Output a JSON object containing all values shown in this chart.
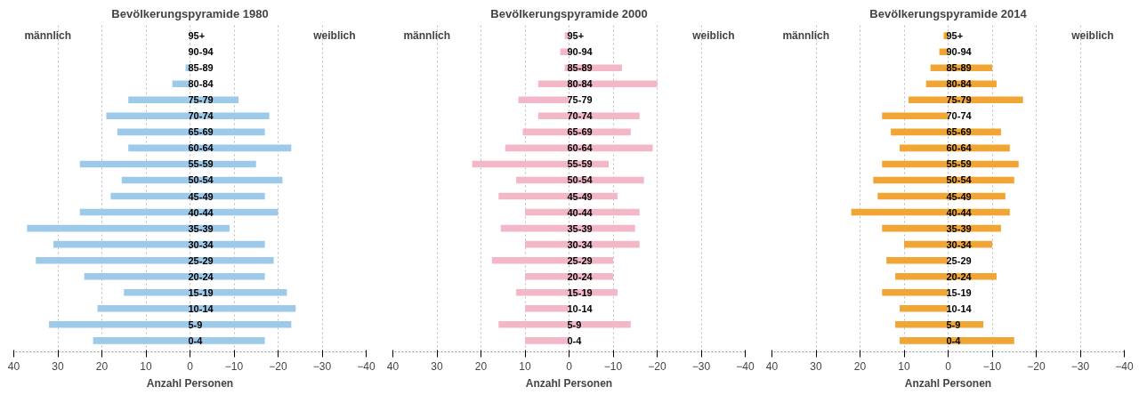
{
  "chart_data": [
    {
      "type": "bar",
      "orientation": "horizontal",
      "stacked": true,
      "title": "Bevölkerungspyramide 1980",
      "xlabel": "Anzahl Personen",
      "annotations": [
        "männlich",
        "weiblich"
      ],
      "categories": [
        "95+",
        "90-94",
        "85-89",
        "80-84",
        "75-79",
        "70-74",
        "65-69",
        "60-64",
        "55-59",
        "50-54",
        "45-49",
        "40-44",
        "35-39",
        "30-34",
        "25-29",
        "20-24",
        "15-19",
        "10-14",
        "5-9",
        "0-4"
      ],
      "series": [
        {
          "color": "#9ecae9",
          "values": [
            null,
            null,
            1,
            4,
            14,
            19,
            16.5,
            14,
            25,
            15.5,
            18,
            25,
            37,
            31,
            35,
            24,
            15,
            21,
            32,
            22
          ]
        },
        {
          "color": "#9ecae9",
          "values": [
            null,
            null,
            null,
            null,
            -11,
            -18,
            -17,
            -23,
            -15,
            -21,
            -17,
            -20,
            -9,
            -17,
            -19,
            -17,
            -22,
            -24,
            -23,
            -17
          ]
        }
      ],
      "xlim": [
        40,
        -40
      ],
      "xticks": [
        40,
        30,
        20,
        10,
        0,
        -10,
        -20,
        -30,
        -40
      ],
      "grid": "x",
      "tick_labels": "x"
    },
    {
      "type": "bar",
      "orientation": "horizontal",
      "stacked": true,
      "title": "Bevölkerungspyramide 2000",
      "xlabel": "Anzahl Personen",
      "annotations": [
        "männlich",
        "weiblich"
      ],
      "categories": [
        "95+",
        "90-94",
        "85-89",
        "80-84",
        "75-79",
        "70-74",
        "65-69",
        "60-64",
        "55-59",
        "50-54",
        "45-49",
        "40-44",
        "35-39",
        "30-34",
        "25-29",
        "20-24",
        "15-19",
        "10-14",
        "5-9",
        "0-4"
      ],
      "series": [
        {
          "color": "#f2b8c8",
          "values": [
            1,
            2,
            1,
            7,
            11.5,
            7,
            10.5,
            14.5,
            22,
            12,
            16,
            10,
            15.5,
            10,
            17.5,
            10,
            12,
            10,
            16,
            10
          ]
        },
        {
          "color": "#f2b8c8",
          "values": [
            null,
            null,
            -12,
            -20,
            null,
            -16,
            -14,
            -19,
            -9,
            -17,
            -11,
            -16,
            -15,
            -16,
            -10,
            -10,
            -11,
            null,
            -14,
            null
          ]
        }
      ],
      "xlim": [
        40,
        -40
      ],
      "xticks": [
        40,
        30,
        20,
        10,
        0,
        -10,
        -20,
        -30,
        -40
      ],
      "grid": "x",
      "tick_labels": "x"
    },
    {
      "type": "bar",
      "orientation": "horizontal",
      "stacked": true,
      "title": "Bevölkerungspyramide 2014",
      "xlabel": "Anzahl Personen",
      "annotations": [
        "männlich",
        "weiblich"
      ],
      "categories": [
        "95+",
        "90-94",
        "85-89",
        "80-84",
        "75-79",
        "70-74",
        "65-69",
        "60-64",
        "55-59",
        "50-54",
        "45-49",
        "40-44",
        "35-39",
        "30-34",
        "25-29",
        "20-24",
        "15-19",
        "10-14",
        "5-9",
        "0-4"
      ],
      "series": [
        {
          "color": "#f0a535",
          "values": [
            1,
            2,
            4,
            5,
            9,
            15,
            13,
            11,
            15,
            17,
            16,
            22,
            15,
            10,
            14,
            12,
            15,
            11,
            12,
            11
          ]
        },
        {
          "color": "#f0a535",
          "values": [
            0,
            0,
            -10,
            -11,
            -17,
            0,
            -12,
            -14,
            -16,
            -15,
            -13,
            -14,
            -12,
            -10,
            0,
            -11,
            0,
            0,
            -8,
            -15
          ]
        }
      ],
      "xlim": [
        40,
        -40
      ],
      "xticks": [
        40,
        30,
        20,
        10,
        0,
        -10,
        -20,
        -30,
        -40
      ],
      "grid": "x",
      "tick_labels": "x"
    }
  ]
}
